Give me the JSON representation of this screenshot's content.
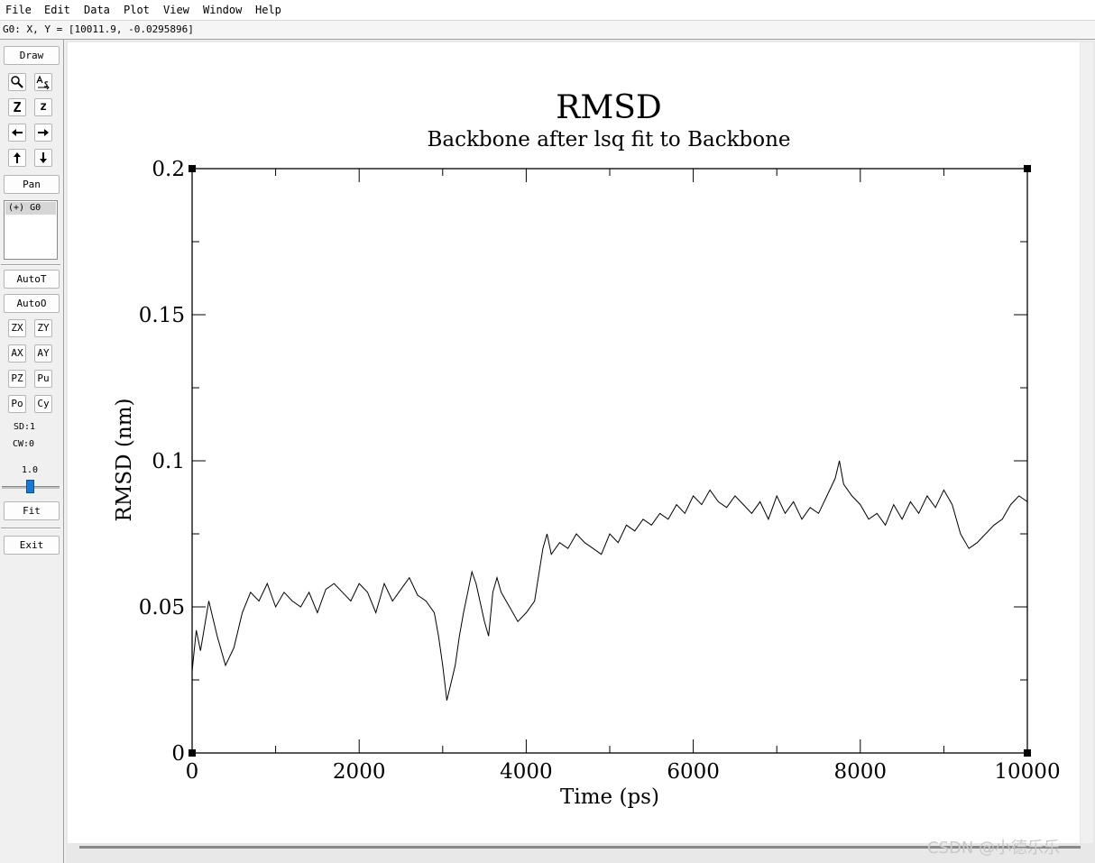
{
  "menu": [
    "File",
    "Edit",
    "Data",
    "Plot",
    "View",
    "Window",
    "Help"
  ],
  "coord_readout": "G0: X, Y = [10011.9, -0.0295896]",
  "toolbar": {
    "draw_label": "Draw",
    "zoom_icon": "magnifier-icon",
    "autoscale_icon": "autoscale-icon",
    "zoom_x_label": "Z",
    "zoom_y_label": "z",
    "pan_label": "Pan",
    "graph_list_item": "(+) G0",
    "autot_label": "AutoT",
    "autoo_label": "AutoO",
    "zx_label": "ZX",
    "zy_label": "ZY",
    "ax_label": "AX",
    "ay_label": "AY",
    "pz_label": "PZ",
    "pu_label": "Pu",
    "po_label": "Po",
    "cy_label": "Cy",
    "sd_label": "SD:1",
    "cw_label": "CW:0",
    "slider_value": "1.0",
    "fit_label": "Fit",
    "exit_label": "Exit"
  },
  "watermark": "CSDN @小德乐乐",
  "chart_data": {
    "type": "line",
    "title": "RMSD",
    "subtitle": "Backbone after lsq fit to Backbone",
    "xlabel": "Time (ps)",
    "ylabel": "RMSD (nm)",
    "xlim": [
      0,
      10000
    ],
    "ylim": [
      0,
      0.2
    ],
    "xticks": [
      0,
      2000,
      4000,
      6000,
      8000,
      10000
    ],
    "xtick_labels": [
      "0",
      "2000",
      "4000",
      "6000",
      "8000",
      "10000"
    ],
    "yticks": [
      0,
      0.05,
      0.1,
      0.15,
      0.2
    ],
    "ytick_labels": [
      "0",
      "0.05",
      "0.1",
      "0.15",
      "0.2"
    ],
    "grid": false,
    "line_color": "#000000",
    "series": [
      {
        "x": [
          0,
          50,
          100,
          200,
          300,
          400,
          500,
          600,
          700,
          800,
          900,
          1000,
          1100,
          1200,
          1300,
          1400,
          1500,
          1600,
          1700,
          1800,
          1900,
          2000,
          2100,
          2200,
          2300,
          2400,
          2500,
          2600,
          2700,
          2800,
          2900,
          2950,
          3000,
          3050,
          3100,
          3150,
          3200,
          3250,
          3300,
          3350,
          3400,
          3500,
          3550,
          3600,
          3650,
          3700,
          3800,
          3900,
          4000,
          4100,
          4200,
          4250,
          4300,
          4400,
          4500,
          4600,
          4700,
          4800,
          4900,
          5000,
          5100,
          5200,
          5300,
          5400,
          5500,
          5600,
          5700,
          5800,
          5900,
          6000,
          6100,
          6200,
          6300,
          6400,
          6500,
          6600,
          6700,
          6800,
          6900,
          7000,
          7100,
          7200,
          7300,
          7400,
          7500,
          7600,
          7700,
          7750,
          7800,
          7900,
          8000,
          8100,
          8200,
          8300,
          8400,
          8500,
          8600,
          8700,
          8800,
          8900,
          9000,
          9100,
          9200,
          9300,
          9400,
          9500,
          9600,
          9700,
          9800,
          9900,
          10000
        ],
        "values": [
          0.028,
          0.042,
          0.035,
          0.052,
          0.04,
          0.03,
          0.036,
          0.048,
          0.055,
          0.052,
          0.058,
          0.05,
          0.055,
          0.052,
          0.05,
          0.055,
          0.048,
          0.056,
          0.058,
          0.055,
          0.052,
          0.058,
          0.055,
          0.048,
          0.058,
          0.052,
          0.056,
          0.06,
          0.054,
          0.052,
          0.048,
          0.04,
          0.03,
          0.018,
          0.024,
          0.03,
          0.04,
          0.048,
          0.055,
          0.062,
          0.058,
          0.045,
          0.04,
          0.055,
          0.06,
          0.055,
          0.05,
          0.045,
          0.048,
          0.052,
          0.07,
          0.075,
          0.068,
          0.072,
          0.07,
          0.075,
          0.072,
          0.07,
          0.068,
          0.075,
          0.072,
          0.078,
          0.076,
          0.08,
          0.078,
          0.082,
          0.08,
          0.085,
          0.082,
          0.088,
          0.085,
          0.09,
          0.086,
          0.084,
          0.088,
          0.085,
          0.082,
          0.086,
          0.08,
          0.088,
          0.082,
          0.086,
          0.08,
          0.084,
          0.082,
          0.088,
          0.094,
          0.1,
          0.092,
          0.088,
          0.085,
          0.08,
          0.082,
          0.078,
          0.085,
          0.08,
          0.086,
          0.082,
          0.088,
          0.084,
          0.09,
          0.085,
          0.075,
          0.07,
          0.072,
          0.075,
          0.078,
          0.08,
          0.085,
          0.088,
          0.086
        ]
      }
    ]
  }
}
